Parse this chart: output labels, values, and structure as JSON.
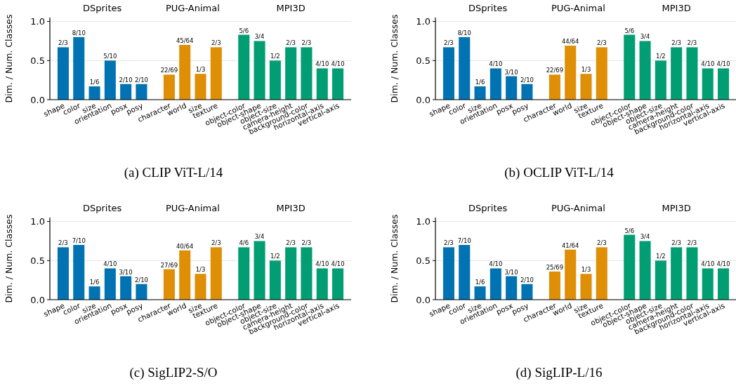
{
  "chart_data": [
    {
      "type": "bar",
      "title": "(a) CLIP ViT-L/14",
      "ylabel": "Dim. / Num. Classes",
      "annotations": [
        "DSprites",
        "PUG-Animal",
        "MPI3D"
      ],
      "categories": [
        "shape",
        "color",
        "size",
        "orientation",
        "posx",
        "posy",
        "character",
        "world",
        "size",
        "texture",
        "object-color",
        "object-shape",
        "object-size",
        "camera-height",
        "background-color",
        "horizontal-axis",
        "vertical-axis"
      ],
      "ylim": [
        0,
        1.05
      ],
      "yticks": [
        {
          "value": 0,
          "label": "0.0"
        },
        {
          "value": 0.5,
          "label": "0.5"
        },
        {
          "value": 1,
          "label": "1.0"
        }
      ],
      "grid": "y",
      "series": [
        {
          "color": "#0173b2",
          "values": [
            0.67,
            0.8,
            0.17,
            0.5,
            0.2,
            0.2,
            null,
            null,
            null,
            null,
            null,
            null,
            null,
            null,
            null,
            null,
            null
          ],
          "value_labels": [
            "2/3",
            "8/10",
            "1/6",
            "5/10",
            "2/10",
            "2/10",
            null,
            null,
            null,
            null,
            null,
            null,
            null,
            null,
            null,
            null,
            null
          ]
        },
        {
          "color": "#de8f05",
          "values": [
            null,
            null,
            null,
            null,
            null,
            null,
            0.32,
            0.7,
            0.33,
            0.67,
            null,
            null,
            null,
            null,
            null,
            null,
            null
          ],
          "value_labels": [
            null,
            null,
            null,
            null,
            null,
            null,
            "22/69",
            "45/64",
            "1/3",
            "2/3",
            null,
            null,
            null,
            null,
            null,
            null,
            null
          ]
        },
        {
          "color": "#029e73",
          "values": [
            null,
            null,
            null,
            null,
            null,
            null,
            null,
            null,
            null,
            null,
            0.83,
            0.75,
            0.5,
            0.67,
            0.67,
            0.4,
            0.4
          ],
          "value_labels": [
            null,
            null,
            null,
            null,
            null,
            null,
            null,
            null,
            null,
            null,
            "5/6",
            "3/4",
            "1/2",
            "2/3",
            "2/3",
            "4/10",
            "4/10"
          ]
        }
      ]
    },
    {
      "type": "bar",
      "title": "(b) OCLIP ViT-L/14",
      "ylabel": "Dim. / Num. Classes",
      "annotations": [
        "DSprites",
        "PUG-Animal",
        "MPI3D"
      ],
      "categories": [
        "shape",
        "color",
        "size",
        "orientation",
        "posx",
        "posy",
        "character",
        "world",
        "size",
        "texture",
        "object-color",
        "object-shape",
        "object-size",
        "camera-height",
        "background-color",
        "horizontal-axis",
        "vertical-axis"
      ],
      "ylim": [
        0,
        1.05
      ],
      "yticks": [
        {
          "value": 0,
          "label": "0.0"
        },
        {
          "value": 0.5,
          "label": "0.5"
        },
        {
          "value": 1,
          "label": "1.0"
        }
      ],
      "grid": "y",
      "series": [
        {
          "color": "#0173b2",
          "values": [
            0.67,
            0.8,
            0.17,
            0.4,
            0.3,
            0.2,
            null,
            null,
            null,
            null,
            null,
            null,
            null,
            null,
            null,
            null,
            null
          ],
          "value_labels": [
            "2/3",
            "8/10",
            "1/6",
            "4/10",
            "3/10",
            "2/10",
            null,
            null,
            null,
            null,
            null,
            null,
            null,
            null,
            null,
            null,
            null
          ]
        },
        {
          "color": "#de8f05",
          "values": [
            null,
            null,
            null,
            null,
            null,
            null,
            0.32,
            0.69,
            0.33,
            0.67,
            null,
            null,
            null,
            null,
            null,
            null,
            null
          ],
          "value_labels": [
            null,
            null,
            null,
            null,
            null,
            null,
            "22/69",
            "44/64",
            "1/3",
            "2/3",
            null,
            null,
            null,
            null,
            null,
            null,
            null
          ]
        },
        {
          "color": "#029e73",
          "values": [
            null,
            null,
            null,
            null,
            null,
            null,
            null,
            null,
            null,
            null,
            0.83,
            0.75,
            0.5,
            0.67,
            0.67,
            0.4,
            0.4
          ],
          "value_labels": [
            null,
            null,
            null,
            null,
            null,
            null,
            null,
            null,
            null,
            null,
            "5/6",
            "3/4",
            "1/2",
            "2/3",
            "2/3",
            "4/10",
            "4/10"
          ]
        }
      ]
    },
    {
      "type": "bar",
      "title": "(c) SigLIP2-S/O",
      "ylabel": "Dim. / Num. Classes",
      "annotations": [
        "DSprites",
        "PUG-Animal",
        "MPI3D"
      ],
      "categories": [
        "shape",
        "color",
        "size",
        "orientation",
        "posx",
        "posy",
        "character",
        "world",
        "size",
        "texture",
        "object-color",
        "object-shape",
        "object-size",
        "camera-height",
        "background-color",
        "horizontal-axis",
        "vertical-axis"
      ],
      "ylim": [
        0,
        1.05
      ],
      "yticks": [
        {
          "value": 0,
          "label": "0.0"
        },
        {
          "value": 0.5,
          "label": "0.5"
        },
        {
          "value": 1,
          "label": "1.0"
        }
      ],
      "grid": "y",
      "series": [
        {
          "color": "#0173b2",
          "values": [
            0.67,
            0.7,
            0.17,
            0.4,
            0.3,
            0.2,
            null,
            null,
            null,
            null,
            null,
            null,
            null,
            null,
            null,
            null,
            null
          ],
          "value_labels": [
            "2/3",
            "7/10",
            "1/6",
            "4/10",
            "3/10",
            "2/10",
            null,
            null,
            null,
            null,
            null,
            null,
            null,
            null,
            null,
            null,
            null
          ]
        },
        {
          "color": "#de8f05",
          "values": [
            null,
            null,
            null,
            null,
            null,
            null,
            0.39,
            0.63,
            0.33,
            0.67,
            null,
            null,
            null,
            null,
            null,
            null,
            null
          ],
          "value_labels": [
            null,
            null,
            null,
            null,
            null,
            null,
            "27/69",
            "40/64",
            "1/3",
            "2/3",
            null,
            null,
            null,
            null,
            null,
            null,
            null
          ]
        },
        {
          "color": "#029e73",
          "values": [
            null,
            null,
            null,
            null,
            null,
            null,
            null,
            null,
            null,
            null,
            0.67,
            0.75,
            0.5,
            0.67,
            0.67,
            0.4,
            0.4
          ],
          "value_labels": [
            null,
            null,
            null,
            null,
            null,
            null,
            null,
            null,
            null,
            null,
            "4/6",
            "3/4",
            "1/2",
            "2/3",
            "2/3",
            "4/10",
            "4/10"
          ]
        }
      ]
    },
    {
      "type": "bar",
      "title": "(d) SigLIP-L/16",
      "ylabel": "Dim. / Num. Classes",
      "annotations": [
        "DSprites",
        "PUG-Animal",
        "MPI3D"
      ],
      "categories": [
        "shape",
        "color",
        "size",
        "orientation",
        "posx",
        "posy",
        "character",
        "world",
        "size",
        "texture",
        "object-color",
        "object-shape",
        "object-size",
        "camera-height",
        "background-color",
        "horizontal-axis",
        "vertical-axis"
      ],
      "ylim": [
        0,
        1.05
      ],
      "yticks": [
        {
          "value": 0,
          "label": "0.0"
        },
        {
          "value": 0.5,
          "label": "0.5"
        },
        {
          "value": 1,
          "label": "1.0"
        }
      ],
      "grid": "y",
      "series": [
        {
          "color": "#0173b2",
          "values": [
            0.67,
            0.7,
            0.17,
            0.4,
            0.3,
            0.2,
            null,
            null,
            null,
            null,
            null,
            null,
            null,
            null,
            null,
            null,
            null
          ],
          "value_labels": [
            "2/3",
            "7/10",
            "1/6",
            "4/10",
            "3/10",
            "2/10",
            null,
            null,
            null,
            null,
            null,
            null,
            null,
            null,
            null,
            null,
            null
          ]
        },
        {
          "color": "#de8f05",
          "values": [
            null,
            null,
            null,
            null,
            null,
            null,
            0.36,
            0.64,
            0.33,
            0.67,
            null,
            null,
            null,
            null,
            null,
            null,
            null
          ],
          "value_labels": [
            null,
            null,
            null,
            null,
            null,
            null,
            "25/69",
            "41/64",
            "1/3",
            "2/3",
            null,
            null,
            null,
            null,
            null,
            null,
            null
          ]
        },
        {
          "color": "#029e73",
          "values": [
            null,
            null,
            null,
            null,
            null,
            null,
            null,
            null,
            null,
            null,
            0.83,
            0.75,
            0.5,
            0.67,
            0.67,
            0.4,
            0.4
          ],
          "value_labels": [
            null,
            null,
            null,
            null,
            null,
            null,
            null,
            null,
            null,
            null,
            "5/6",
            "3/4",
            "1/2",
            "2/3",
            "2/3",
            "4/10",
            "4/10"
          ]
        }
      ]
    }
  ]
}
